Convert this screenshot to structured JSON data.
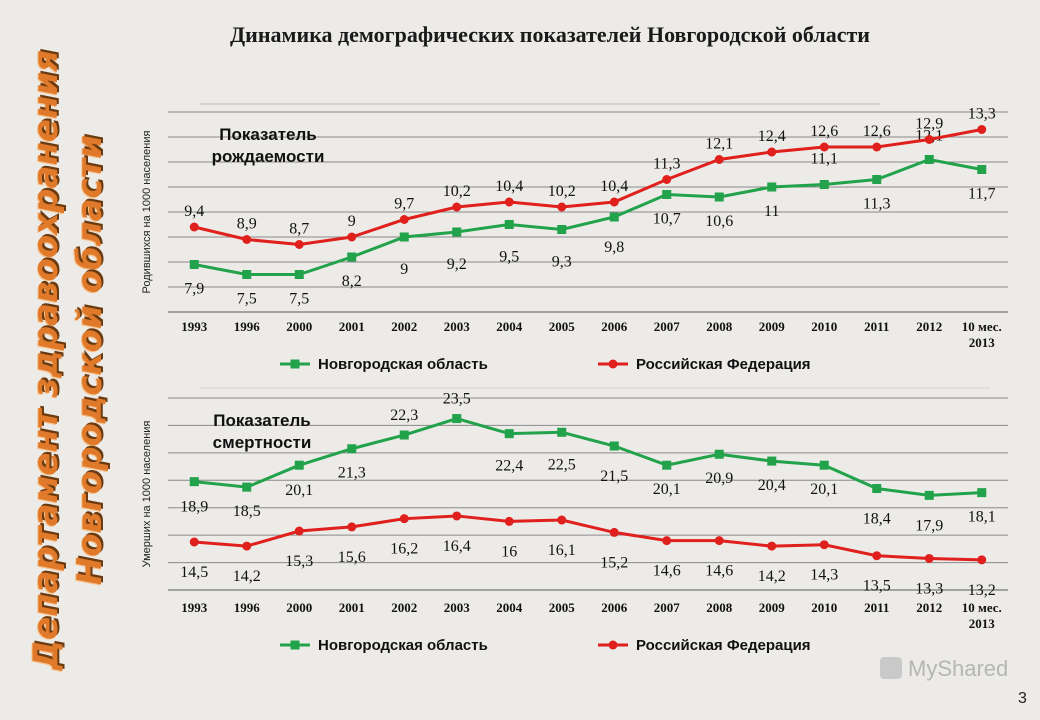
{
  "side_title": {
    "line1": "Департамент здравоохранения",
    "line2": "Новгородской области"
  },
  "title": "Динамика демографических показателей Новгородской области",
  "page_number": "3",
  "watermark": "MyShared",
  "colors": {
    "novgorod": "#22a24a",
    "russia": "#e0201c",
    "grid": "#8a8a8a",
    "side_title": "#e07a2a"
  },
  "chart_data": [
    {
      "type": "line",
      "panel_label": "Показатель рождаемости",
      "ylabel": "Родившихся на 1000 населения",
      "categories": [
        "1993",
        "1996",
        "2000",
        "2001",
        "2002",
        "2003",
        "2004",
        "2005",
        "2006",
        "2007",
        "2008",
        "2009",
        "2010",
        "2011",
        "2012",
        "10 мес. 2013"
      ],
      "series": [
        {
          "name": "Новгородская область",
          "color": "#22a24a",
          "marker": "square",
          "values": [
            7.9,
            7.5,
            7.5,
            8.2,
            9,
            9.2,
            9.5,
            9.3,
            9.8,
            10.7,
            10.6,
            11,
            11.1,
            11.3,
            12.1,
            11.7
          ],
          "labels": [
            "7,9",
            "7,5",
            "7,5",
            "8,2",
            "9",
            "9,2",
            "9,5",
            "9,3",
            "9,8",
            "10,7",
            "10,6",
            "11",
            "11,1",
            "11,3",
            "12,1",
            "11,7"
          ]
        },
        {
          "name": "Российская Федерация",
          "color": "#e0201c",
          "marker": "circle",
          "values": [
            9.4,
            8.9,
            8.7,
            9,
            9.7,
            10.2,
            10.4,
            10.2,
            10.4,
            11.3,
            12.1,
            12.4,
            12.6,
            12.6,
            12.9,
            13.3
          ],
          "labels": [
            "9,4",
            "8,9",
            "8,7",
            "9",
            "9,7",
            "10,2",
            "10,4",
            "10,2",
            "10,4",
            "11,3",
            "12,1",
            "12,4",
            "12,6",
            "12,6",
            "12,9",
            "13,3"
          ]
        }
      ],
      "legend_position": "bottom",
      "grid": true
    },
    {
      "type": "line",
      "panel_label": "Показатель смертности",
      "ylabel": "Умерших на 1000 населения",
      "categories": [
        "1993",
        "1996",
        "2000",
        "2001",
        "2002",
        "2003",
        "2004",
        "2005",
        "2006",
        "2007",
        "2008",
        "2009",
        "2010",
        "2011",
        "2012",
        "10 мес. 2013"
      ],
      "series": [
        {
          "name": "Новгородская область",
          "color": "#22a24a",
          "marker": "square",
          "values": [
            18.9,
            18.5,
            20.1,
            21.3,
            22.3,
            23.5,
            22.4,
            22.5,
            21.5,
            20.1,
            20.9,
            20.4,
            20.1,
            18.4,
            17.9,
            18.1
          ],
          "labels": [
            "18,9",
            "18,5",
            "20,1",
            "21,3",
            "22,3",
            "23,5",
            "22,4",
            "22,5",
            "21,5",
            "20,1",
            "20,9",
            "20,4",
            "20,1",
            "18,4",
            "17,9",
            "18,1"
          ]
        },
        {
          "name": "Российская Федерация",
          "color": "#e0201c",
          "marker": "circle",
          "values": [
            14.5,
            14.2,
            15.3,
            15.6,
            16.2,
            16.4,
            16,
            16.1,
            15.2,
            14.6,
            14.6,
            14.2,
            14.3,
            13.5,
            13.3,
            13.2
          ],
          "labels": [
            "14,5",
            "14,2",
            "15,3",
            "15,6",
            "16,2",
            "16,4",
            "16",
            "16,1",
            "15,2",
            "14,6",
            "14,6",
            "14,2",
            "14,3",
            "13,5",
            "13,3",
            "13,2"
          ]
        }
      ],
      "legend_position": "bottom",
      "grid": true
    }
  ]
}
